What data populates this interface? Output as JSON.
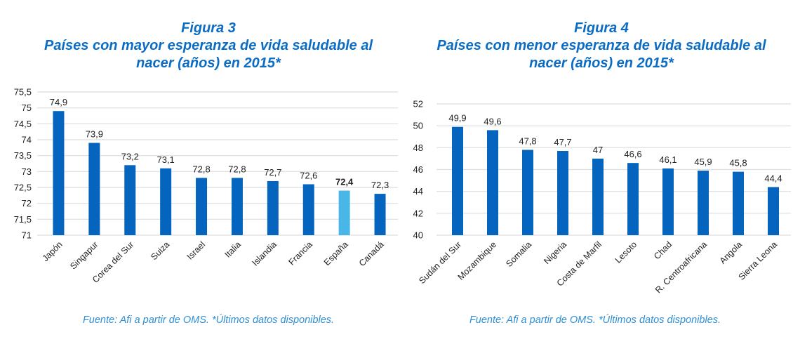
{
  "chart_data": [
    {
      "type": "bar",
      "figure_label": "Figura 3",
      "title": "Países con mayor esperanza de vida saludable al nacer (años) en 2015*",
      "title_lines": [
        "Países con mayor esperanza de vida saludable al",
        "nacer (años) en 2015*"
      ],
      "source": "Fuente: Afi a partir de OMS. *Últimos datos disponibles.",
      "categories": [
        "Japón",
        "Singapur",
        "Corea del Sur",
        "Suiza",
        "Israel",
        "Italia",
        "Islandia",
        "Francia",
        "España",
        "Canadá"
      ],
      "values": [
        74.9,
        73.9,
        73.2,
        73.1,
        72.8,
        72.8,
        72.7,
        72.6,
        72.4,
        72.3
      ],
      "value_labels": [
        "74,9",
        "73,9",
        "73,2",
        "73,1",
        "72,8",
        "72,8",
        "72,7",
        "72,6",
        "72,4",
        "72,3"
      ],
      "ylim": [
        71,
        75.5
      ],
      "yticks": [
        71,
        71.5,
        72,
        72.5,
        73,
        73.5,
        74,
        74.5,
        75,
        75.5
      ],
      "ytick_labels": [
        "71",
        "71,5",
        "72",
        "72,5",
        "73",
        "73,5",
        "74",
        "74,5",
        "75",
        "75,5"
      ],
      "highlight_index": 8,
      "colors": {
        "bar": "#0565be",
        "highlight": "#48b7e8"
      },
      "grid": true
    },
    {
      "type": "bar",
      "figure_label": "Figura 4",
      "title": "Países con menor esperanza de vida saludable al nacer (años) en 2015*",
      "title_lines": [
        "Países con menor esperanza de vida saludable al",
        "nacer (años) en 2015*"
      ],
      "source": "Fuente: Afi a partir de OMS. *Últimos datos disponibles.",
      "categories": [
        "Sudán del Sur",
        "Mozambique",
        "Somalia",
        "Nigeria",
        "Costa de Marfil",
        "Lesoto",
        "Chad",
        "R. Centroafricana",
        "Angola",
        "Sierra Leona"
      ],
      "values": [
        49.9,
        49.6,
        47.8,
        47.7,
        47,
        46.6,
        46.1,
        45.9,
        45.8,
        44.4
      ],
      "value_labels": [
        "49,9",
        "49,6",
        "47,8",
        "47,7",
        "47",
        "46,6",
        "46,1",
        "45,9",
        "45,8",
        "44,4"
      ],
      "ylim": [
        40,
        52
      ],
      "yticks": [
        40,
        42,
        44,
        46,
        48,
        50,
        52
      ],
      "ytick_labels": [
        "40",
        "42",
        "44",
        "46",
        "48",
        "50",
        "52"
      ],
      "colors": {
        "bar": "#0565be"
      },
      "grid": true
    }
  ]
}
